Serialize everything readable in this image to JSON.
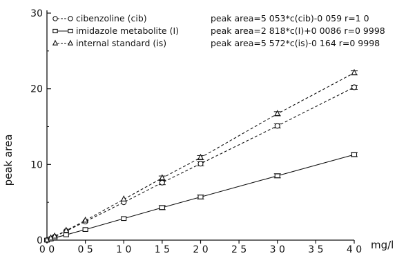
{
  "chart_data": {
    "type": "line",
    "xlabel": "mg/l",
    "ylabel": "peak area",
    "xlim": [
      0,
      4.0
    ],
    "ylim": [
      0,
      30
    ],
    "x_ticks": [
      0.0,
      0.5,
      1.0,
      1.5,
      2.0,
      2.5,
      3.0,
      3.5,
      4.0
    ],
    "x_tick_labels": [
      "0 0",
      "0 5",
      "1 0",
      "1 5",
      "2 0",
      "2 5",
      "3 0",
      "3 5",
      "4 0"
    ],
    "y_ticks": [
      0,
      10,
      20,
      30
    ],
    "y_tick_labels": [
      "0",
      "10",
      "20",
      "30"
    ],
    "grid": false,
    "legend_position": "top-left",
    "series": [
      {
        "name": "cibenzoline (cib)",
        "marker": "circle",
        "line_style": "dashed",
        "equation": "peak area=5 053*c(cib)-0 059   r=1 0",
        "x": [
          0.0,
          0.05,
          0.1,
          0.25,
          0.5,
          1.0,
          1.5,
          2.0,
          3.0,
          4.0
        ],
        "y": [
          0.0,
          0.2,
          0.45,
          1.2,
          2.45,
          5.0,
          7.6,
          10.1,
          15.1,
          20.2
        ]
      },
      {
        "name": "imidazole metabolite (I)",
        "marker": "square",
        "line_style": "solid",
        "equation": "peak area=2 818*c(I)+0 0086   r=0 9998",
        "x": [
          0.0,
          0.05,
          0.1,
          0.25,
          0.5,
          1.0,
          1.5,
          2.0,
          3.0,
          4.0
        ],
        "y": [
          0.0,
          0.15,
          0.3,
          0.7,
          1.4,
          2.85,
          4.3,
          5.7,
          8.5,
          11.3
        ]
      },
      {
        "name": "internal standard (is)",
        "marker": "triangle",
        "line_style": "dashed",
        "equation": "peak area=5 572*c(is)-0 164   r=0 9998",
        "x": [
          0.0,
          0.05,
          0.1,
          0.25,
          0.5,
          1.0,
          1.5,
          2.0,
          3.0,
          4.0
        ],
        "y": [
          0.0,
          0.25,
          0.5,
          1.25,
          2.6,
          5.4,
          8.2,
          10.9,
          16.7,
          22.1
        ]
      }
    ]
  }
}
